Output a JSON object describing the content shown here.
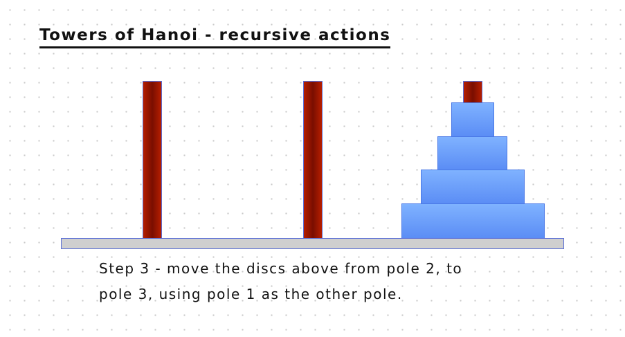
{
  "title": "Towers of Hanoi - recursive actions",
  "caption": {
    "line1": "Step 3 - move the discs above from pole 2, to",
    "line2": "pole 3, using pole 1 as the other pole."
  },
  "colors": {
    "pole": "#8a1200",
    "disc": "#6a9cff",
    "base": "#cfcfcf",
    "outline": "#5b6fd6"
  },
  "poles": [
    {
      "id": 1,
      "discs": []
    },
    {
      "id": 2,
      "discs": []
    },
    {
      "id": 3,
      "discs": [
        4,
        3,
        2,
        1
      ]
    }
  ]
}
